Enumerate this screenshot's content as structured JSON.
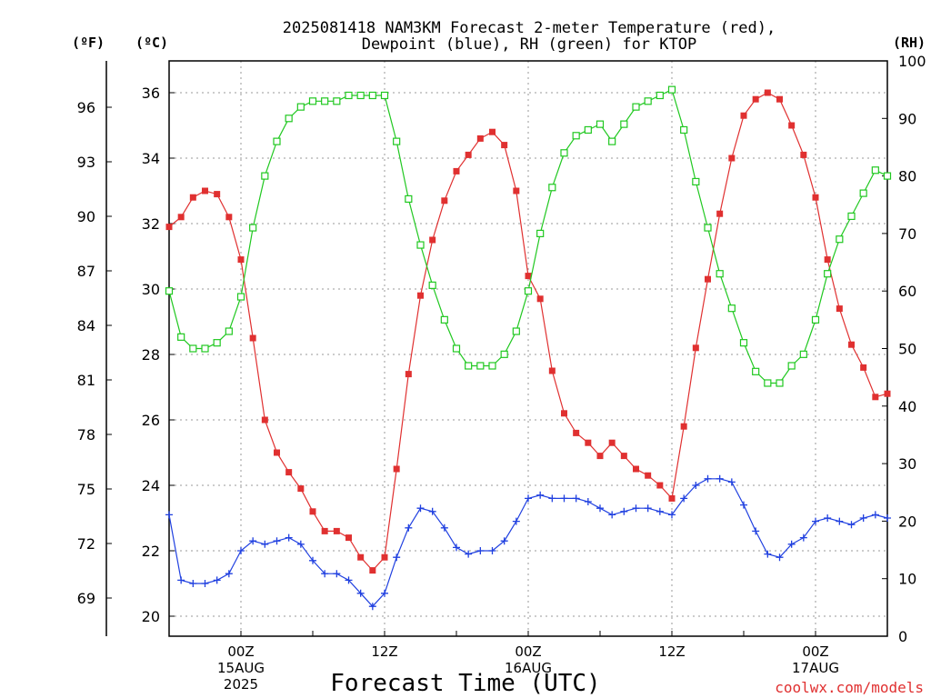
{
  "title_line1": "2025081418 NAM3KM Forecast 2-meter Temperature (red),",
  "title_line2": "Dewpoint (blue), RH (green) for KTOP",
  "unit_f": "(ºF)",
  "unit_c": "(ºC)",
  "unit_rh": "(RH)",
  "xlabel": "Forecast Time (UTC)",
  "credit": "coolwx.com/models",
  "colors": {
    "temperature": "#e03030",
    "dewpoint": "#2040e0",
    "rh": "#20c820",
    "grid": "#999999"
  },
  "chart_data": {
    "type": "line",
    "title": "2025081418 NAM3KM Forecast 2-meter Temperature (red), Dewpoint (blue), RH (green) for KTOP",
    "xlabel": "Forecast Time (UTC)",
    "x_unit": "forecast hour",
    "xlim": [
      0,
      60
    ],
    "x_ticks": [
      {
        "x": 6,
        "lines": [
          "00Z",
          "15AUG",
          "2025"
        ]
      },
      {
        "x": 18,
        "lines": [
          "12Z"
        ]
      },
      {
        "x": 30,
        "lines": [
          "00Z",
          "16AUG"
        ]
      },
      {
        "x": 42,
        "lines": [
          "12Z"
        ]
      },
      {
        "x": 54,
        "lines": [
          "00Z",
          "17AUG"
        ]
      }
    ],
    "y_left_c": {
      "label": "(ºC)",
      "ticks": [
        20,
        22,
        24,
        26,
        28,
        30,
        32,
        34,
        36
      ]
    },
    "y_left_f": {
      "label": "(ºF)",
      "ticks": [
        69,
        72,
        75,
        78,
        81,
        84,
        87,
        90,
        93,
        96
      ]
    },
    "y_right_rh": {
      "label": "(RH)",
      "ticks": [
        0,
        10,
        20,
        30,
        40,
        50,
        60,
        70,
        80,
        90,
        100
      ]
    },
    "grid": true,
    "series": [
      {
        "name": "Temperature",
        "axis": "celsius",
        "marker": "filled-square",
        "x": [
          0,
          1,
          2,
          3,
          4,
          5,
          6,
          7,
          8,
          9,
          10,
          11,
          12,
          13,
          14,
          15,
          16,
          17,
          18,
          19,
          20,
          21,
          22,
          23,
          24,
          25,
          26,
          27,
          28,
          29,
          30,
          31,
          32,
          33,
          34,
          35,
          36,
          37,
          38,
          39,
          40,
          41,
          42,
          43,
          44,
          45,
          46,
          47,
          48,
          49,
          50,
          51,
          52,
          53,
          54,
          55,
          56,
          57,
          58,
          59,
          60
        ],
        "values": [
          31.9,
          32.2,
          32.8,
          33.0,
          32.9,
          32.2,
          30.9,
          28.5,
          26.0,
          25.0,
          24.4,
          23.9,
          23.2,
          22.6,
          22.6,
          22.4,
          21.8,
          21.4,
          21.8,
          24.5,
          27.4,
          29.8,
          31.5,
          32.7,
          33.6,
          34.1,
          34.6,
          34.8,
          34.4,
          33.0,
          30.4,
          29.7,
          27.5,
          26.2,
          25.6,
          25.3,
          24.9,
          25.3,
          24.9,
          24.5,
          24.3,
          24.0,
          23.6,
          25.8,
          28.2,
          30.3,
          32.3,
          34.0,
          35.3,
          35.8,
          36.0,
          35.8,
          35.0,
          34.1,
          32.8,
          30.9,
          29.4,
          28.3,
          27.6,
          26.7,
          26.8
        ]
      },
      {
        "name": "Dewpoint",
        "axis": "celsius",
        "marker": "plus",
        "x": [
          0,
          1,
          2,
          3,
          4,
          5,
          6,
          7,
          8,
          9,
          10,
          11,
          12,
          13,
          14,
          15,
          16,
          17,
          18,
          19,
          20,
          21,
          22,
          23,
          24,
          25,
          26,
          27,
          28,
          29,
          30,
          31,
          32,
          33,
          34,
          35,
          36,
          37,
          38,
          39,
          40,
          41,
          42,
          43,
          44,
          45,
          46,
          47,
          48,
          49,
          50,
          51,
          52,
          53,
          54,
          55,
          56,
          57,
          58,
          59,
          60
        ],
        "values": [
          23.1,
          21.1,
          21.0,
          21.0,
          21.1,
          21.3,
          22.0,
          22.3,
          22.2,
          22.3,
          22.4,
          22.2,
          21.7,
          21.3,
          21.3,
          21.1,
          20.7,
          20.3,
          20.7,
          21.8,
          22.7,
          23.3,
          23.2,
          22.7,
          22.1,
          21.9,
          22.0,
          22.0,
          22.3,
          22.9,
          23.6,
          23.7,
          23.6,
          23.6,
          23.6,
          23.5,
          23.3,
          23.1,
          23.2,
          23.3,
          23.3,
          23.2,
          23.1,
          23.6,
          24.0,
          24.2,
          24.2,
          24.1,
          23.4,
          22.6,
          21.9,
          21.8,
          22.2,
          22.4,
          22.9,
          23.0,
          22.9,
          22.8,
          23.0,
          23.1,
          23.0
        ]
      },
      {
        "name": "RH",
        "axis": "percent",
        "marker": "open-square",
        "x": [
          0,
          1,
          2,
          3,
          4,
          5,
          6,
          7,
          8,
          9,
          10,
          11,
          12,
          13,
          14,
          15,
          16,
          17,
          18,
          19,
          20,
          21,
          22,
          23,
          24,
          25,
          26,
          27,
          28,
          29,
          30,
          31,
          32,
          33,
          34,
          35,
          36,
          37,
          38,
          39,
          40,
          41,
          42,
          43,
          44,
          45,
          46,
          47,
          48,
          49,
          50,
          51,
          52,
          53,
          54,
          55,
          56,
          57,
          58,
          59,
          60
        ],
        "values": [
          60,
          52,
          50,
          50,
          51,
          53,
          59,
          71,
          80,
          86,
          90,
          92,
          93,
          93,
          93,
          94,
          94,
          94,
          94,
          86,
          76,
          68,
          61,
          55,
          50,
          47,
          47,
          47,
          49,
          53,
          60,
          70,
          78,
          84,
          87,
          88,
          89,
          86,
          89,
          92,
          93,
          94,
          95,
          88,
          79,
          71,
          63,
          57,
          51,
          46,
          44,
          44,
          47,
          49,
          55,
          63,
          69,
          73,
          77,
          81,
          80
        ]
      }
    ]
  }
}
